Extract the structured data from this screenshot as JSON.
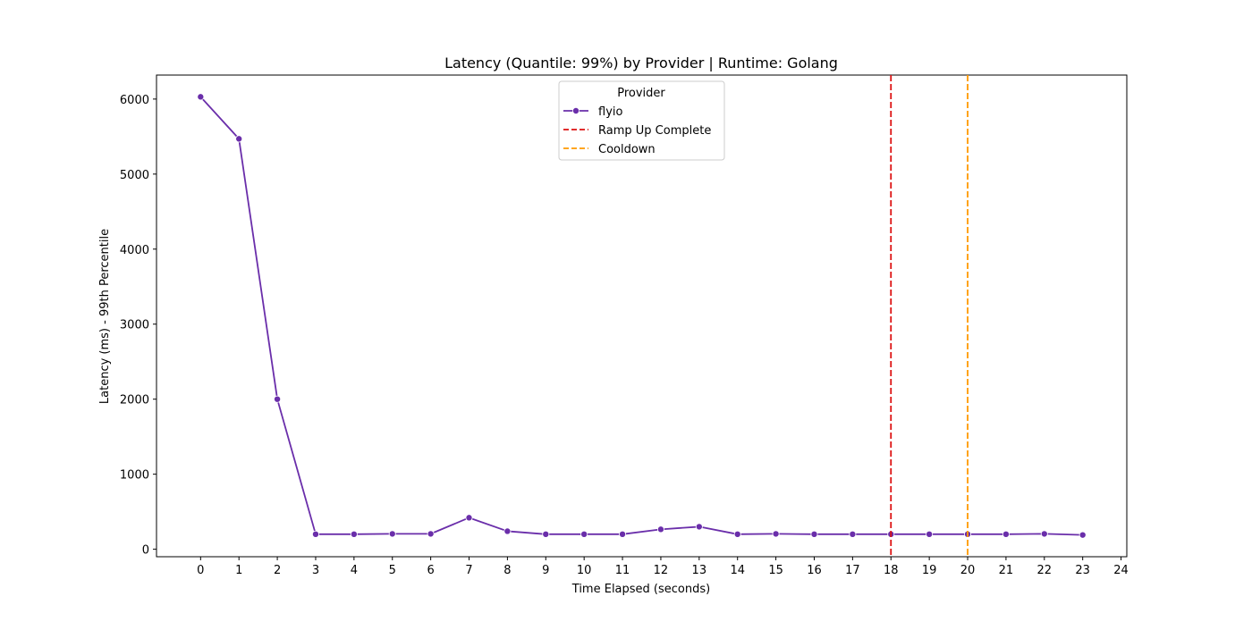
{
  "chart_data": {
    "type": "line",
    "title": "Latency (Quantile: 99%) by Provider | Runtime: Golang",
    "xlabel": "Time Elapsed (seconds)",
    "ylabel": "Latency (ms) - 99th Percentile",
    "xlim": [
      -1.15,
      24.15
    ],
    "ylim": [
      -100,
      6320
    ],
    "x_ticks": [
      0,
      1,
      2,
      3,
      4,
      5,
      6,
      7,
      8,
      9,
      10,
      11,
      12,
      13,
      14,
      15,
      16,
      17,
      18,
      19,
      20,
      21,
      22,
      23,
      24
    ],
    "y_ticks": [
      0,
      1000,
      2000,
      3000,
      4000,
      5000,
      6000
    ],
    "grid": false,
    "legend": {
      "title": "Provider",
      "placement": "top-center"
    },
    "series": [
      {
        "name": "flyio",
        "color": "#6a2eaa",
        "marker": "circle",
        "x": [
          0,
          1,
          2,
          3,
          4,
          5,
          6,
          7,
          8,
          9,
          10,
          11,
          12,
          13,
          14,
          15,
          16,
          17,
          18,
          19,
          20,
          21,
          22,
          23
        ],
        "y": [
          6030,
          5470,
          2000,
          200,
          200,
          205,
          205,
          420,
          240,
          200,
          200,
          200,
          265,
          300,
          200,
          205,
          200,
          200,
          200,
          200,
          200,
          200,
          205,
          190
        ]
      }
    ],
    "vlines": [
      {
        "name": "Ramp Up Complete",
        "x": 18,
        "color": "#dd1111",
        "style": "dashed"
      },
      {
        "name": "Cooldown",
        "x": 20,
        "color": "#ff9900",
        "style": "dashed"
      }
    ]
  }
}
